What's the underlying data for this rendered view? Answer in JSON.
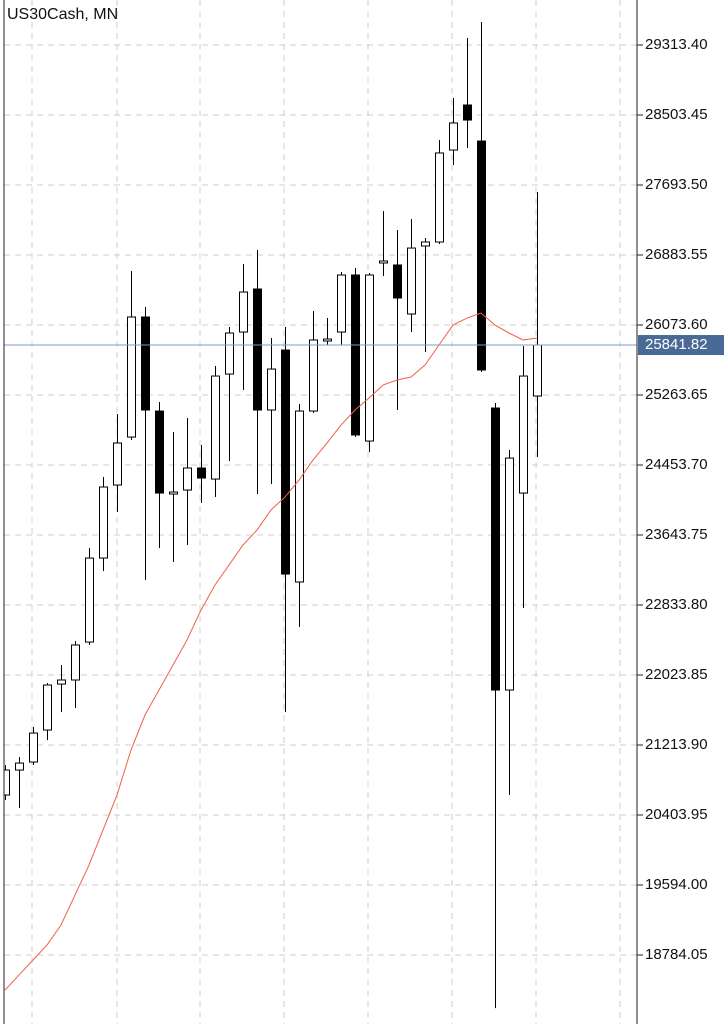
{
  "chart_data": {
    "type": "candlestick",
    "title": "US30Cash, MN",
    "ylim": [
      18032,
      29834
    ],
    "yticks": [
      {
        "value": 29313.4,
        "label": "29313.40"
      },
      28503.45,
      {
        "value": 27693.5,
        "label": "27693.50"
      },
      26883.55,
      {
        "value": 26073.6,
        "label": "26073.60"
      },
      25263.65,
      {
        "value": 24453.7,
        "label": "24453.70"
      },
      23643.75,
      {
        "value": 22833.8,
        "label": "22833.80"
      },
      22023.85,
      {
        "value": 21213.9,
        "label": "21213.90"
      },
      20403.95,
      {
        "value": 19594,
        "label": "19594.00"
      },
      18784.05
    ],
    "grid": true,
    "up_color": "#ffffff",
    "down_color": "#000000",
    "open": [
      20635,
      20924,
      21017,
      21387,
      21919,
      21966,
      22405,
      23377,
      24222,
      24777,
      26166,
      25078,
      24118,
      24164,
      24419,
      24291,
      25506,
      25992,
      26490,
      25090,
      25784,
      23100,
      25078,
      25888,
      25992,
      26652,
      24731,
      26791,
      26768,
      26201,
      26988,
      27034,
      28098,
      28619,
      28202,
      25113,
      21850,
      24129,
      25252
    ],
    "high": [
      20982,
      21075,
      21422,
      21931,
      22139,
      22417,
      23493,
      24315,
      25044,
      26698,
      26282,
      25182,
      24835,
      24997,
      24685,
      25599,
      26050,
      26779,
      26941,
      25923,
      26050,
      25159,
      26235,
      26154,
      26687,
      26733,
      26675,
      27393,
      27173,
      27300,
      27080,
      28214,
      28700,
      29394,
      29579,
      25171,
      24627,
      25830,
      27612
    ],
    "low": [
      20577,
      20485,
      20982,
      21271,
      21595,
      21642,
      22371,
      23227,
      23910,
      24743,
      23123,
      23493,
      23331,
      23528,
      24014,
      24083,
      24500,
      25321,
      24118,
      24234,
      21595,
      22579,
      25055,
      25842,
      25842,
      24777,
      24604,
      26640,
      25090,
      25992,
      25761,
      27011,
      27925,
      28121,
      25530,
      18170,
      20635,
      22799,
      24546
    ],
    "close": [
      20924,
      21005,
      21352,
      21908,
      21966,
      22371,
      23377,
      24199,
      24708,
      26166,
      25090,
      24129,
      24141,
      24419,
      24303,
      25483,
      25981,
      26455,
      25090,
      25564,
      23192,
      25078,
      25900,
      25911,
      26652,
      24801,
      26652,
      26814,
      26386,
      26964,
      27034,
      28064,
      28411,
      28445,
      25553,
      21850,
      24534,
      25483,
      25841.82
    ],
    "ma": {
      "color": "#f0604a",
      "values": [
        18379,
        18552,
        18726,
        18899,
        19131,
        19478,
        19825,
        20230,
        20635,
        21156,
        21561,
        21850,
        22139,
        22429,
        22776,
        23065,
        23296,
        23528,
        23701,
        23933,
        24083,
        24280,
        24511,
        24708,
        24916,
        25090,
        25229,
        25379,
        25437,
        25472,
        25611,
        25842,
        26073,
        26154,
        26212,
        26073,
        25981,
        25900,
        25923
      ]
    },
    "current_price": 25841.82,
    "current_price_color": "#4a6a96"
  }
}
